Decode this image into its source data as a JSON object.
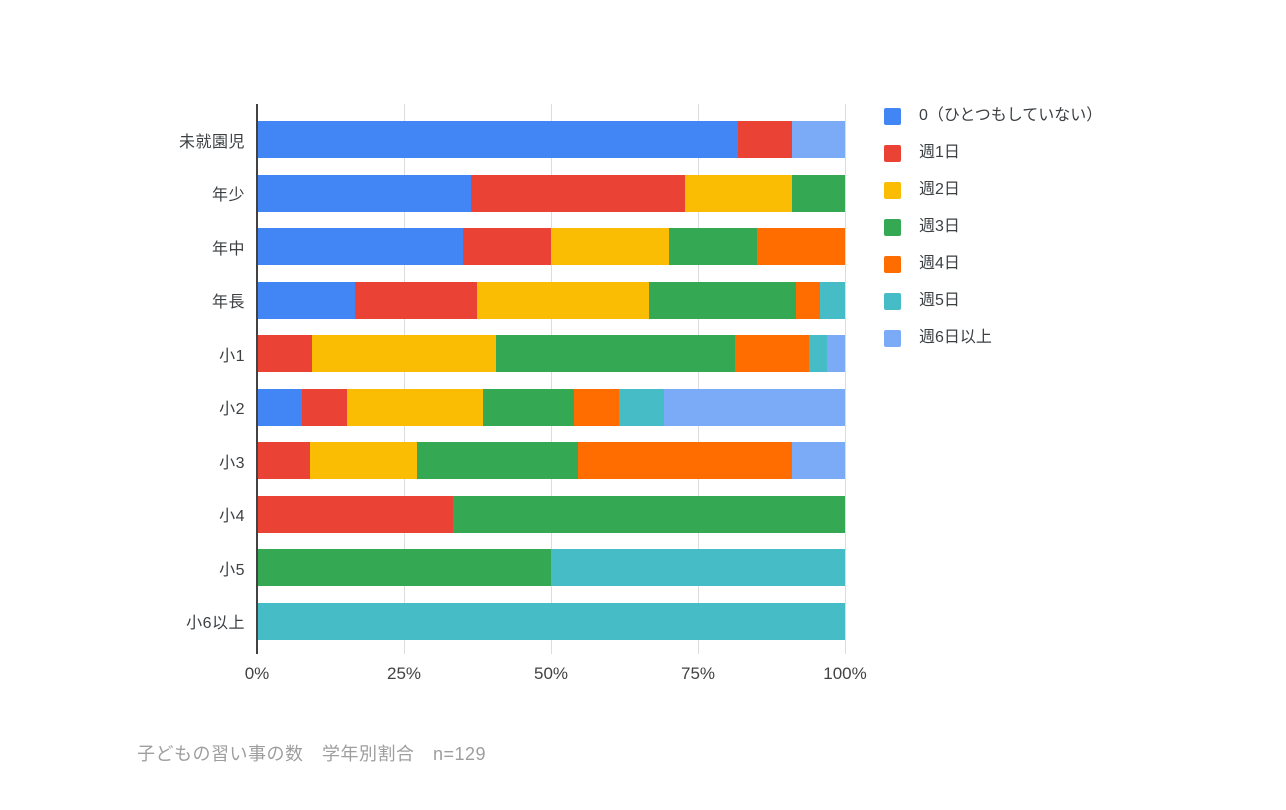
{
  "chart_data": {
    "type": "bar",
    "orientation": "horizontal",
    "stacked": true,
    "value_unit": "percent",
    "caption": "子どもの習い事の数　学年別割合　n=129",
    "categories": [
      "未就園児",
      "年少",
      "年中",
      "年長",
      "小1",
      "小2",
      "小3",
      "小4",
      "小5",
      "小6以上"
    ],
    "series": [
      {
        "name": "0（ひとつもしていない）",
        "color": "#4285f4",
        "values": [
          81.8,
          36.4,
          35.0,
          16.7,
          0,
          7.7,
          0,
          0,
          0,
          0
        ]
      },
      {
        "name": "週1日",
        "color": "#ea4335",
        "values": [
          9.1,
          36.4,
          15.0,
          20.8,
          9.4,
          7.7,
          9.1,
          33.3,
          0,
          0
        ]
      },
      {
        "name": "週2日",
        "color": "#fbbc04",
        "values": [
          0,
          18.2,
          20.0,
          29.2,
          31.3,
          23.1,
          18.2,
          0,
          0,
          0
        ]
      },
      {
        "name": "週3日",
        "color": "#34a853",
        "values": [
          0,
          9.1,
          15.0,
          25.0,
          40.6,
          15.4,
          27.3,
          66.7,
          50.0,
          0
        ]
      },
      {
        "name": "週4日",
        "color": "#ff6d01",
        "values": [
          0,
          0,
          15.0,
          4.2,
          12.5,
          7.7,
          36.4,
          0,
          0,
          0
        ]
      },
      {
        "name": "週5日",
        "color": "#46bdc6",
        "values": [
          0,
          0,
          0,
          4.2,
          3.1,
          7.7,
          0,
          0,
          50.0,
          100.0
        ]
      },
      {
        "name": "週6日以上",
        "color": "#7baaf7",
        "values": [
          9.1,
          0,
          0,
          0,
          3.1,
          30.8,
          9.1,
          0,
          0,
          0
        ]
      }
    ],
    "x_axis": {
      "ticks": [
        "0%",
        "25%",
        "50%",
        "75%",
        "100%"
      ],
      "min": 0,
      "max": 100,
      "grid": true
    },
    "legend_position": "right"
  },
  "layout_colors": {
    "background": "#ffffff",
    "gridline": "#dadce0",
    "axis_line": "#424242",
    "tick_label": "#424242",
    "category_label": "#3c4043",
    "legend_label": "#3c4043",
    "caption": "#9e9e9e"
  }
}
